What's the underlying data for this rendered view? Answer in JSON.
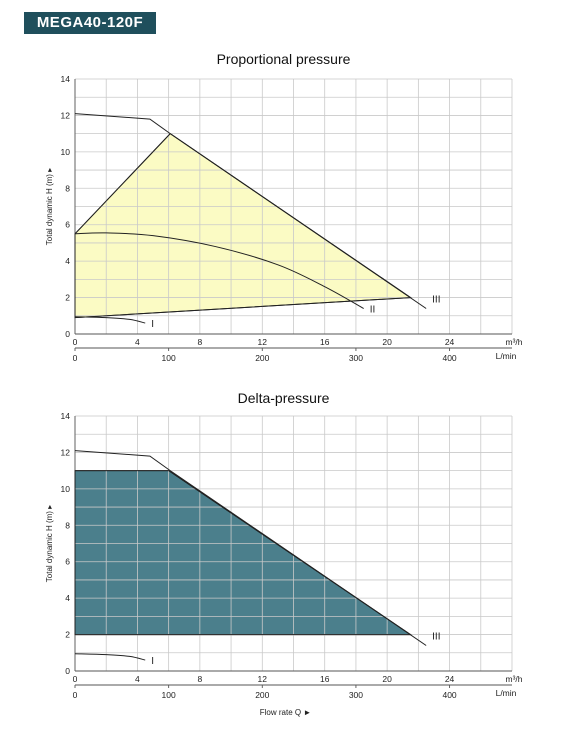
{
  "header": {
    "model": "MEGA40-120F"
  },
  "chart_data": [
    {
      "type": "area",
      "title": "Proportional pressure",
      "ylabel": "Total dynamic H (m) ▸",
      "xlabel": "Flow rate Q ►",
      "x_unit": "m³/h",
      "x2_unit": "L/min",
      "xlim": [
        0,
        28
      ],
      "ylim": [
        0,
        14
      ],
      "x_ticks": [
        0,
        4,
        8,
        12,
        16,
        20,
        24
      ],
      "x2_ticks": [
        0,
        100,
        200,
        300,
        400
      ],
      "y_ticks": [
        0,
        2,
        4,
        6,
        8,
        10,
        12,
        14
      ],
      "fill_color": "#fbfbc4",
      "region": {
        "x": [
          0,
          6.1,
          21.5,
          0
        ],
        "y": [
          5.5,
          11.0,
          2.0,
          0.9
        ]
      },
      "curves": [
        {
          "label": "I",
          "x": [
            0,
            2,
            3.5,
            4.5
          ],
          "y": [
            0.95,
            0.9,
            0.8,
            0.6
          ]
        },
        {
          "label": "II",
          "x": [
            0,
            2,
            5,
            9,
            13,
            16,
            18.5
          ],
          "y": [
            5.5,
            5.55,
            5.4,
            4.8,
            3.8,
            2.6,
            1.4
          ]
        },
        {
          "label": "III",
          "x": [
            0,
            4.8,
            6.1,
            22.5
          ],
          "y": [
            12.1,
            11.8,
            11.0,
            1.4
          ]
        }
      ]
    },
    {
      "type": "area",
      "title": "Delta-pressure",
      "ylabel": "Total dynamic H (m) ▸",
      "xlabel": "Flow rate Q ►",
      "x_unit": "m³/h",
      "x2_unit": "L/min",
      "xlim": [
        0,
        28
      ],
      "ylim": [
        0,
        14
      ],
      "x_ticks": [
        0,
        4,
        8,
        12,
        16,
        20,
        24
      ],
      "x2_ticks": [
        0,
        100,
        200,
        300,
        400
      ],
      "y_ticks": [
        0,
        2,
        4,
        6,
        8,
        10,
        12,
        14
      ],
      "fill_color": "#4b7f8c",
      "region": {
        "x": [
          0,
          6.0,
          21.5,
          0
        ],
        "y": [
          11.0,
          11.0,
          2.0,
          2.0
        ]
      },
      "curves": [
        {
          "label": "I",
          "x": [
            0,
            2,
            3.5,
            4.5
          ],
          "y": [
            0.95,
            0.9,
            0.8,
            0.6
          ]
        },
        {
          "label": "III",
          "x": [
            0,
            4.8,
            6.1,
            22.5
          ],
          "y": [
            12.1,
            11.8,
            11.0,
            1.4
          ]
        }
      ]
    }
  ]
}
